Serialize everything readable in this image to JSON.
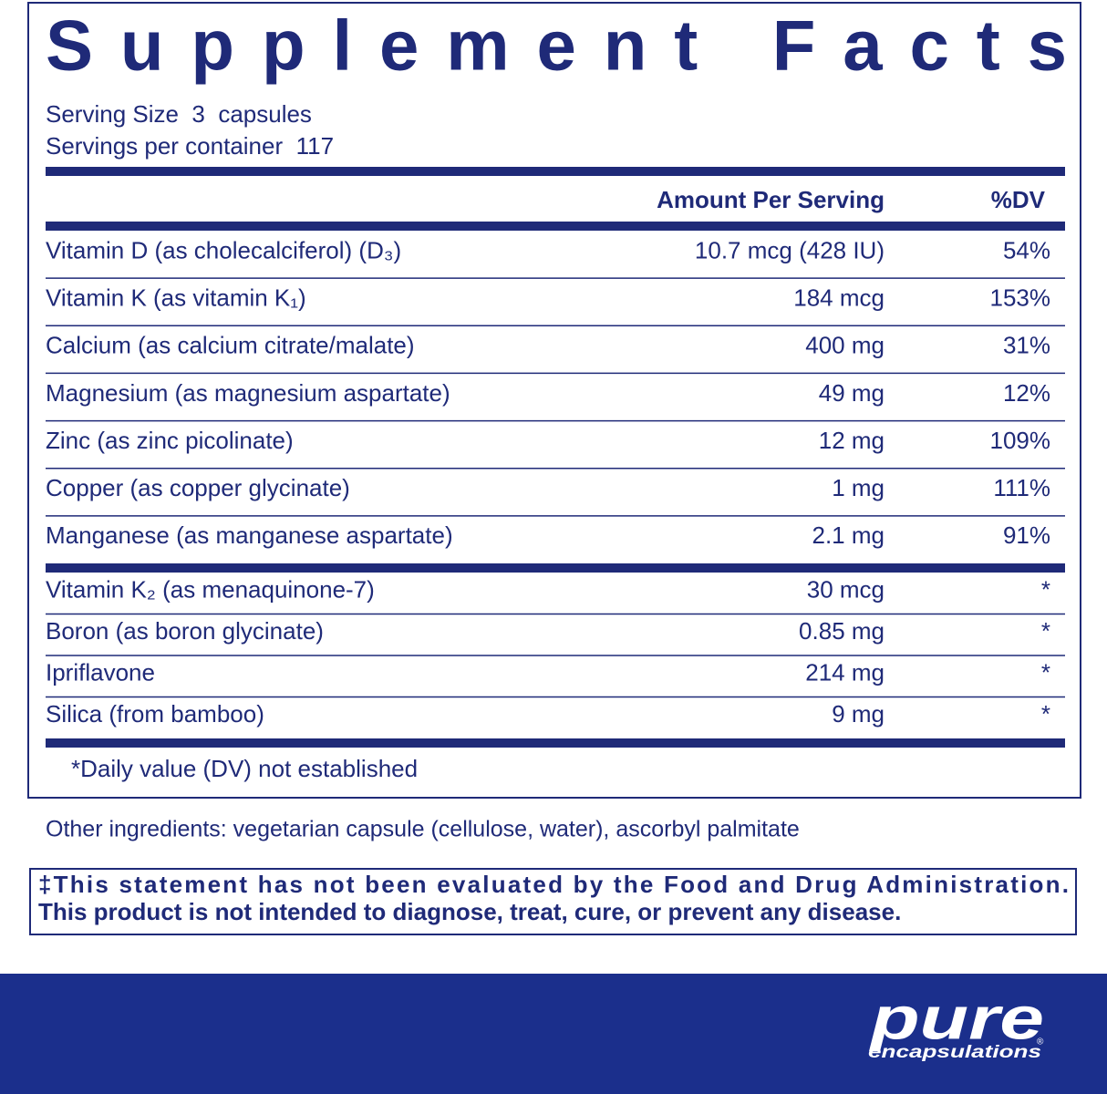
{
  "title": "Supplement Facts",
  "serving_size": "Serving Size  3  capsules",
  "servings_per_container": "Servings per container  117",
  "table": {
    "header": [
      "Amount Per Serving",
      "%DV"
    ],
    "groups": [
      [
        [
          "Vitamin D (as cholecalciferol) (D₃)",
          "10.7 mcg (428 IU)",
          "54%"
        ],
        [
          "Vitamin K (as vitamin K₁)",
          "184 mcg",
          "153%"
        ],
        [
          "Calcium (as calcium citrate/malate)",
          "400 mg",
          "31%"
        ],
        [
          "Magnesium (as magnesium aspartate)",
          "49 mg",
          "12%"
        ],
        [
          "Zinc (as zinc picolinate)",
          "12 mg",
          "109%"
        ],
        [
          "Copper (as copper glycinate)",
          "1 mg",
          "111%"
        ],
        [
          "Manganese (as manganese aspartate)",
          "2.1 mg",
          "91%"
        ]
      ],
      [
        [
          "Vitamin K₂ (as menaquinone-7)",
          "30 mcg",
          "*"
        ],
        [
          "Boron (as boron glycinate)",
          "0.85 mg",
          "*"
        ],
        [
          "Ipriflavone",
          "214 mg",
          "*"
        ],
        [
          "Silica (from bamboo)",
          "9 mg",
          "*"
        ]
      ]
    ],
    "footnote": "*Daily value (DV) not established"
  },
  "other_ingredients": "Other ingredients: vegetarian capsule (cellulose, water), ascorbyl palmitate",
  "disclaimer": [
    "‡This statement has not been evaluated by the Food and Drug Administration.",
    "This product is not intended to diagnose, treat, cure, or prevent any disease."
  ],
  "logo": {
    "name": "pure",
    "sub": "encapsulations",
    "mark": "®"
  }
}
